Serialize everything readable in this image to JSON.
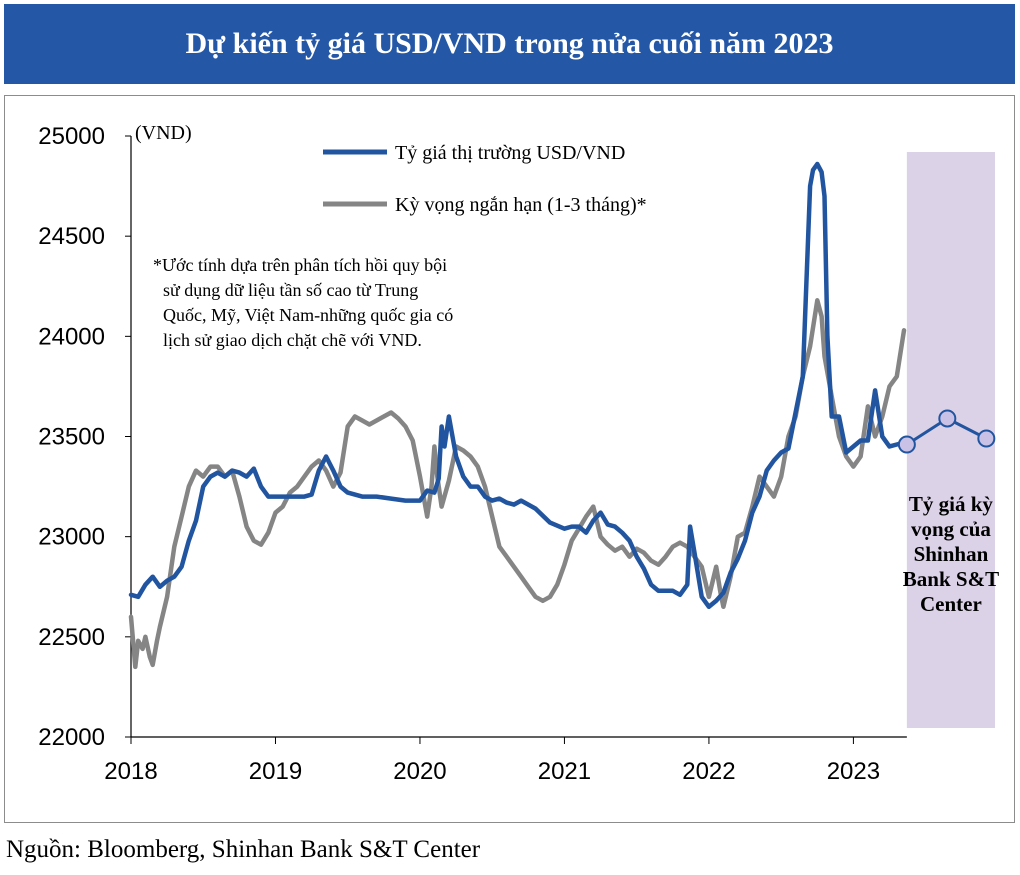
{
  "title": "Dự kiến tỷ giá USD/VND trong nửa cuối năm 2023",
  "source": "Nguồn: Bloomberg, Shinhan Bank S&T Center",
  "colors": {
    "title_bg": "#2458a6",
    "market": "#2255a0",
    "expectation": "#858585",
    "forecast_band": "#dcd2e8"
  },
  "chart_data": {
    "type": "line",
    "ylabel": "(VND)",
    "ylim": [
      22000,
      25000
    ],
    "yticks": [
      "25000",
      "24500",
      "24000",
      "23500",
      "23000",
      "22500",
      "22000"
    ],
    "xlim": [
      2018.0,
      2023.98
    ],
    "xticks": [
      "2018",
      "2019",
      "2020",
      "2021",
      "2022",
      "2023"
    ],
    "grid": false,
    "legend_position": "top-center",
    "note": "*Ước tính dựa trên phân tích hồi quy bội sử dụng dữ liệu tần số cao từ Trung Quốc, Mỹ, Việt Nam-những quốc gia có lịch sử giao dịch chặt chẽ với VND.",
    "forecast_band": {
      "from": 2023.37,
      "to": 2023.98,
      "label": "Tỷ giá kỳ vọng của Shinhan Bank S&T Center"
    },
    "series": [
      {
        "name": "Tỷ giá thị trường USD/VND",
        "color": "#2255a0",
        "x": [
          2018.0,
          2018.05,
          2018.1,
          2018.15,
          2018.2,
          2018.25,
          2018.3,
          2018.35,
          2018.4,
          2018.45,
          2018.5,
          2018.55,
          2018.6,
          2018.65,
          2018.7,
          2018.75,
          2018.8,
          2018.85,
          2018.9,
          2018.95,
          2019.0,
          2019.1,
          2019.2,
          2019.25,
          2019.3,
          2019.35,
          2019.4,
          2019.45,
          2019.5,
          2019.6,
          2019.7,
          2019.8,
          2019.9,
          2020.0,
          2020.05,
          2020.1,
          2020.13,
          2020.15,
          2020.17,
          2020.2,
          2020.25,
          2020.3,
          2020.35,
          2020.4,
          2020.45,
          2020.5,
          2020.55,
          2020.6,
          2020.65,
          2020.7,
          2020.8,
          2020.9,
          2021.0,
          2021.05,
          2021.1,
          2021.15,
          2021.2,
          2021.25,
          2021.3,
          2021.35,
          2021.4,
          2021.45,
          2021.5,
          2021.55,
          2021.6,
          2021.65,
          2021.7,
          2021.75,
          2021.8,
          2021.85,
          2021.87,
          2021.9,
          2021.95,
          2022.0,
          2022.05,
          2022.1,
          2022.15,
          2022.2,
          2022.25,
          2022.3,
          2022.35,
          2022.4,
          2022.45,
          2022.5,
          2022.55,
          2022.6,
          2022.65,
          2022.7,
          2022.72,
          2022.75,
          2022.78,
          2022.8,
          2022.82,
          2022.85,
          2022.9,
          2022.95,
          2023.0,
          2023.05,
          2023.1,
          2023.15,
          2023.2,
          2023.25,
          2023.3,
          2023.35
        ],
        "y": [
          22710,
          22700,
          22760,
          22800,
          22750,
          22780,
          22800,
          22850,
          22980,
          23080,
          23250,
          23300,
          23320,
          23300,
          23330,
          23320,
          23300,
          23340,
          23250,
          23200,
          23200,
          23200,
          23200,
          23210,
          23330,
          23400,
          23330,
          23250,
          23220,
          23200,
          23200,
          23190,
          23180,
          23180,
          23230,
          23220,
          23290,
          23550,
          23450,
          23600,
          23400,
          23300,
          23250,
          23250,
          23200,
          23180,
          23190,
          23170,
          23160,
          23180,
          23140,
          23070,
          23040,
          23050,
          23050,
          23020,
          23080,
          23120,
          23060,
          23050,
          23020,
          22980,
          22900,
          22840,
          22760,
          22730,
          22730,
          22730,
          22710,
          22760,
          23050,
          22920,
          22700,
          22650,
          22680,
          22720,
          22820,
          22890,
          22980,
          23120,
          23200,
          23330,
          23380,
          23420,
          23440,
          23620,
          23800,
          24750,
          24830,
          24860,
          24820,
          24700,
          24000,
          23600,
          23600,
          23420,
          23450,
          23480,
          23480,
          23730,
          23500,
          23450,
          23460,
          23470
        ]
      },
      {
        "name": "Kỳ vọng ngắn hạn (1-3 tháng)*",
        "color": "#858585",
        "x": [
          2018.0,
          2018.03,
          2018.05,
          2018.08,
          2018.1,
          2018.13,
          2018.15,
          2018.18,
          2018.2,
          2018.25,
          2018.3,
          2018.35,
          2018.4,
          2018.45,
          2018.5,
          2018.55,
          2018.6,
          2018.65,
          2018.7,
          2018.75,
          2018.8,
          2018.85,
          2018.9,
          2018.95,
          2019.0,
          2019.05,
          2019.1,
          2019.15,
          2019.2,
          2019.25,
          2019.3,
          2019.35,
          2019.4,
          2019.45,
          2019.5,
          2019.55,
          2019.6,
          2019.65,
          2019.7,
          2019.75,
          2019.8,
          2019.85,
          2019.9,
          2019.95,
          2020.0,
          2020.05,
          2020.08,
          2020.1,
          2020.12,
          2020.15,
          2020.2,
          2020.25,
          2020.3,
          2020.35,
          2020.4,
          2020.45,
          2020.5,
          2020.55,
          2020.6,
          2020.65,
          2020.7,
          2020.75,
          2020.8,
          2020.85,
          2020.9,
          2020.95,
          2021.0,
          2021.05,
          2021.1,
          2021.15,
          2021.2,
          2021.25,
          2021.3,
          2021.35,
          2021.4,
          2021.45,
          2021.5,
          2021.55,
          2021.6,
          2021.65,
          2021.7,
          2021.75,
          2021.8,
          2021.85,
          2021.9,
          2021.95,
          2022.0,
          2022.05,
          2022.08,
          2022.1,
          2022.15,
          2022.2,
          2022.25,
          2022.3,
          2022.35,
          2022.4,
          2022.45,
          2022.5,
          2022.55,
          2022.6,
          2022.65,
          2022.7,
          2022.75,
          2022.78,
          2022.8,
          2022.85,
          2022.9,
          2022.95,
          2023.0,
          2023.05,
          2023.1,
          2023.15,
          2023.2,
          2023.25,
          2023.3,
          2023.35
        ],
        "y": [
          22600,
          22350,
          22480,
          22440,
          22500,
          22400,
          22360,
          22480,
          22550,
          22700,
          22950,
          23100,
          23250,
          23330,
          23300,
          23350,
          23350,
          23300,
          23330,
          23200,
          23050,
          22980,
          22960,
          23020,
          23120,
          23150,
          23220,
          23250,
          23300,
          23350,
          23380,
          23330,
          23250,
          23320,
          23550,
          23600,
          23580,
          23560,
          23580,
          23600,
          23620,
          23590,
          23550,
          23480,
          23300,
          23100,
          23250,
          23450,
          23300,
          23150,
          23280,
          23450,
          23430,
          23400,
          23350,
          23250,
          23100,
          22950,
          22900,
          22850,
          22800,
          22750,
          22700,
          22680,
          22700,
          22760,
          22860,
          22980,
          23040,
          23100,
          23150,
          23000,
          22960,
          22930,
          22950,
          22900,
          22940,
          22920,
          22880,
          22860,
          22900,
          22950,
          22970,
          22950,
          22900,
          22850,
          22700,
          22850,
          22720,
          22650,
          22800,
          23000,
          23020,
          23150,
          23300,
          23250,
          23200,
          23300,
          23500,
          23600,
          23800,
          23950,
          24180,
          24100,
          23900,
          23700,
          23500,
          23400,
          23350,
          23400,
          23650,
          23500,
          23600,
          23750,
          23800,
          24030
        ]
      },
      {
        "name": "",
        "color": "#2255a0",
        "x": [
          2023.37,
          2023.65,
          2023.92
        ],
        "y": [
          23460,
          23590,
          23490
        ],
        "markers": true
      }
    ]
  },
  "legend": {
    "items": [
      "Tỷ giá thị trường USD/VND",
      "Kỳ vọng ngắn hạn (1-3 tháng)*"
    ]
  }
}
